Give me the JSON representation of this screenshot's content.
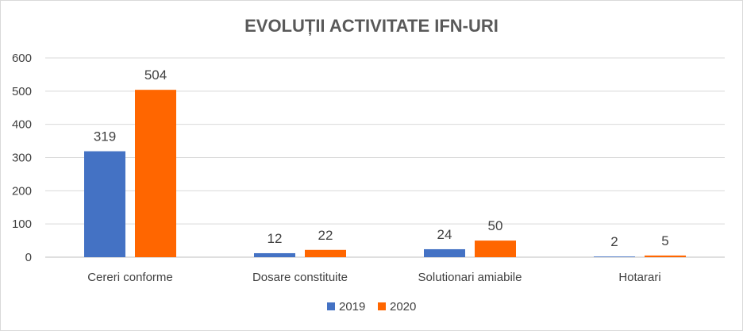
{
  "chart_data": {
    "type": "bar",
    "title": "EVOLUȚII ACTIVITATE IFN-URI",
    "categories": [
      "Cereri conforme",
      "Dosare constituite",
      "Solutionari amiabile",
      "Hotarari"
    ],
    "series": [
      {
        "name": "2019",
        "values": [
          319,
          12,
          24,
          2
        ],
        "color": "#4472c4"
      },
      {
        "name": "2020",
        "values": [
          504,
          22,
          50,
          5
        ],
        "color": "#ff6600"
      }
    ],
    "ylim": [
      0,
      600
    ],
    "yticks": [
      "0",
      "100",
      "200",
      "300",
      "400",
      "500",
      "600"
    ],
    "grid": true,
    "legend_position": "bottom",
    "data_labels": true
  }
}
